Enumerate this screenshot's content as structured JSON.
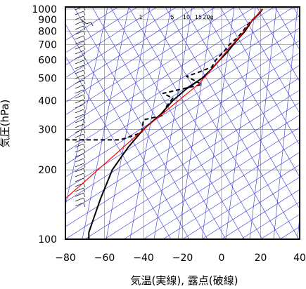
{
  "chart_data": {
    "type": "line",
    "xlabel": "気温(実線), 露点(破線)",
    "ylabel": "気圧(hPa)",
    "xlim": [
      -80,
      40
    ],
    "ylim": [
      1020,
      100
    ],
    "y_scale": "log",
    "x_ticks": [
      "−80",
      "−60",
      "−40",
      "−20",
      "0",
      "20",
      "40"
    ],
    "x_tick_values": [
      -80,
      -60,
      -40,
      -20,
      0,
      20,
      40
    ],
    "y_ticks": [
      "100",
      "200",
      "300",
      "400",
      "500",
      "600",
      "700",
      "800",
      "900",
      "1000"
    ],
    "y_tick_values": [
      100,
      200,
      300,
      400,
      500,
      600,
      700,
      800,
      900,
      1000
    ],
    "mixing_ratio_labels": [
      "1",
      "5",
      "10",
      "15",
      "20g"
    ],
    "grid": true,
    "colors": {
      "isopleth": "#3333dd",
      "grid": "#9a9a9a",
      "temperature": "#000000",
      "dewpoint": "#000000",
      "parcel": "#ff0000"
    },
    "series": [
      {
        "style": "solid",
        "points": [
          [
            -68,
            100
          ],
          [
            -68,
            107
          ],
          [
            -66,
            120
          ],
          [
            -62,
            150
          ],
          [
            -56,
            200
          ],
          [
            -48,
            250
          ],
          [
            -40,
            300
          ],
          [
            -31,
            350
          ],
          [
            -25,
            400
          ],
          [
            -18,
            450
          ],
          [
            -10,
            500
          ],
          [
            -5,
            550
          ],
          [
            -1,
            600
          ],
          [
            3,
            650
          ],
          [
            6,
            700
          ],
          [
            9,
            750
          ],
          [
            12,
            800
          ],
          [
            14,
            850
          ],
          [
            16,
            900
          ],
          [
            19,
            950
          ],
          [
            21,
            1000
          ]
        ]
      },
      {
        "style": "dashed",
        "points": [
          [
            -80,
            270
          ],
          [
            -52,
            270
          ],
          [
            -41,
            290
          ],
          [
            -40,
            330
          ],
          [
            -30,
            345
          ],
          [
            -29,
            370
          ],
          [
            -25,
            410
          ],
          [
            -30,
            430
          ],
          [
            -20,
            450
          ],
          [
            -10,
            470
          ],
          [
            -18,
            510
          ],
          [
            -12,
            530
          ],
          [
            -5,
            560
          ],
          [
            -3,
            600
          ],
          [
            1,
            650
          ],
          [
            4,
            700
          ],
          [
            8,
            750
          ],
          [
            11,
            800
          ],
          [
            13,
            850
          ],
          [
            16,
            900
          ],
          [
            19,
            950
          ],
          [
            20,
            1000
          ]
        ]
      },
      {
        "style": "red",
        "points": [
          [
            -80,
            150
          ],
          [
            -40,
            300
          ],
          [
            -12,
            470
          ],
          [
            -4,
            560
          ],
          [
            4,
            680
          ],
          [
            10,
            770
          ],
          [
            14,
            860
          ],
          [
            18,
            940
          ],
          [
            21,
            1000
          ]
        ]
      }
    ],
    "wind_barbs_at_x": -75
  }
}
